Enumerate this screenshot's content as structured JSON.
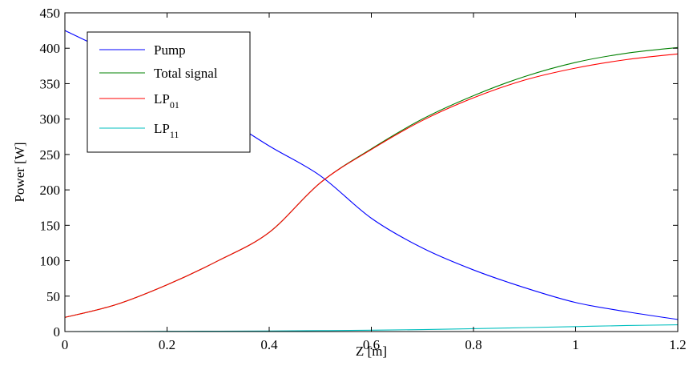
{
  "chart_data": {
    "type": "line",
    "xlabel": "Z [m]",
    "ylabel": "Power [W]",
    "xlim": [
      0,
      1.2
    ],
    "ylim": [
      0,
      450
    ],
    "xticks": [
      "0",
      "0.2",
      "0.4",
      "0.6",
      "0.8",
      "1",
      "1.2"
    ],
    "xtick_values": [
      0,
      0.2,
      0.4,
      0.6,
      0.8,
      1.0,
      1.2
    ],
    "yticks": [
      "0",
      "50",
      "100",
      "150",
      "200",
      "250",
      "300",
      "350",
      "400",
      "450"
    ],
    "ytick_values": [
      0,
      50,
      100,
      150,
      200,
      250,
      300,
      350,
      400,
      450
    ],
    "grid": false,
    "legend_position": "top-left",
    "x": [
      0,
      0.1,
      0.2,
      0.3,
      0.4,
      0.5,
      0.6,
      0.7,
      0.8,
      0.9,
      1.0,
      1.1,
      1.2
    ],
    "series": [
      {
        "name": "Pump",
        "legend_main": "Pump",
        "legend_sub": "",
        "color": "#0000ff",
        "values": [
          425,
          390,
          352,
          308,
          262,
          220,
          160,
          118,
          87,
          62,
          41,
          28,
          17
        ]
      },
      {
        "name": "Total signal",
        "legend_main": "Total signal",
        "legend_sub": "",
        "color": "#008000",
        "values": [
          20,
          38,
          66,
          100,
          140,
          210,
          258,
          300,
          333,
          360,
          380,
          393,
          401
        ]
      },
      {
        "name": "LP01",
        "legend_main": "LP",
        "legend_sub": "01",
        "color": "#ff0000",
        "values": [
          20,
          38,
          66,
          100,
          140,
          210,
          257,
          298,
          330,
          355,
          372,
          384,
          392
        ]
      },
      {
        "name": "LP11",
        "legend_main": "LP",
        "legend_sub": "11",
        "color": "#00bfbf",
        "values": [
          0,
          0.1,
          0.3,
          0.5,
          0.8,
          1.3,
          1.9,
          2.8,
          4,
          5.5,
          7,
          8.5,
          9.5
        ]
      }
    ]
  }
}
